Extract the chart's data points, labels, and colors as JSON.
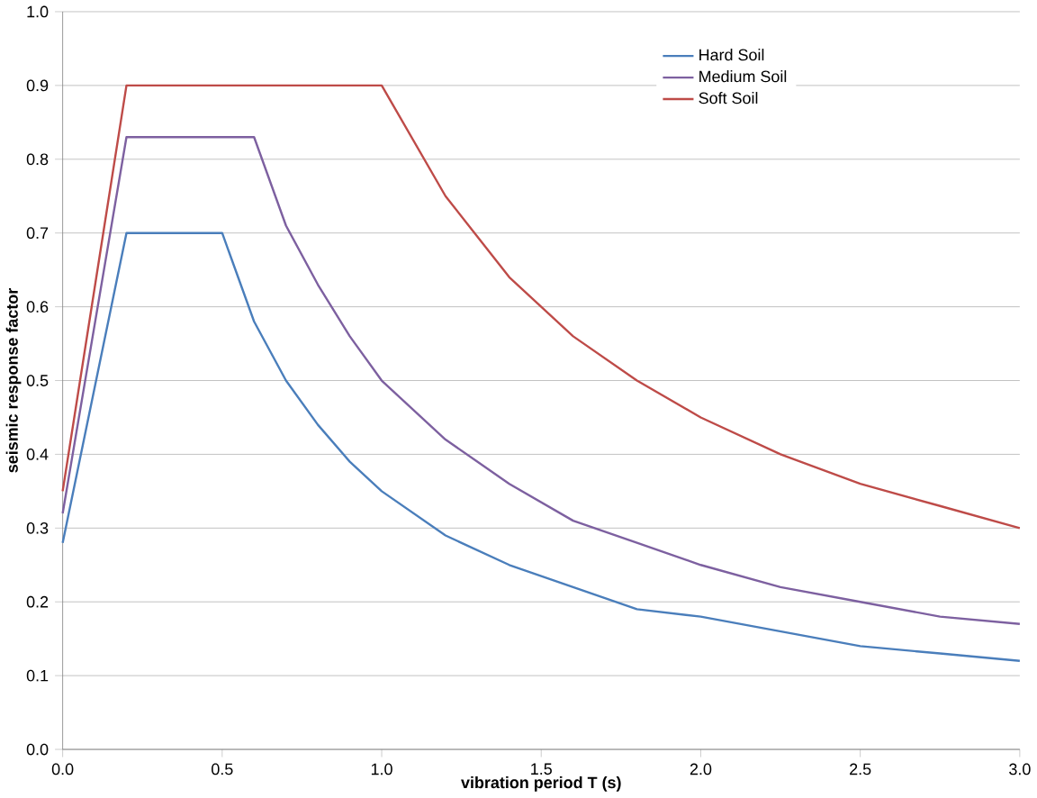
{
  "chart_data": {
    "type": "line",
    "xlabel": "vibration period T (s)",
    "ylabel": "seismic response factor",
    "xlim": [
      0,
      3
    ],
    "ylim": [
      0,
      1
    ],
    "xticks": [
      {
        "value": 0,
        "label": "0.0"
      },
      {
        "value": 0.5,
        "label": "0.5"
      },
      {
        "value": 1,
        "label": "1.0"
      },
      {
        "value": 1.5,
        "label": "1.5"
      },
      {
        "value": 2,
        "label": "2.0"
      },
      {
        "value": 2.5,
        "label": "2.5"
      },
      {
        "value": 3,
        "label": "3.0"
      }
    ],
    "yticks": [
      {
        "value": 0,
        "label": "0.0"
      },
      {
        "value": 0.1,
        "label": "0.1"
      },
      {
        "value": 0.2,
        "label": "0.2"
      },
      {
        "value": 0.3,
        "label": "0.3"
      },
      {
        "value": 0.4,
        "label": "0.4"
      },
      {
        "value": 0.5,
        "label": "0.5"
      },
      {
        "value": 0.6,
        "label": "0.6"
      },
      {
        "value": 0.7,
        "label": "0.7"
      },
      {
        "value": 0.8,
        "label": "0.8"
      },
      {
        "value": 0.9,
        "label": "0.9"
      },
      {
        "value": 1,
        "label": "1.0"
      }
    ],
    "grid": "y",
    "legend": "top right",
    "marker": "none",
    "line_style": "solid",
    "series": [
      {
        "name": "Hard Soil",
        "color": "#4a7ebb",
        "x": [
          0,
          0.2,
          0.5,
          0.6,
          0.7,
          0.8,
          0.9,
          1.0,
          1.2,
          1.4,
          1.6,
          1.8,
          2.0,
          2.25,
          2.5,
          2.75,
          3.0
        ],
        "values": [
          0.28,
          0.7,
          0.7,
          0.58,
          0.5,
          0.44,
          0.39,
          0.35,
          0.29,
          0.25,
          0.22,
          0.19,
          0.18,
          0.16,
          0.14,
          0.13,
          0.12
        ]
      },
      {
        "name": "Medium Soil",
        "color": "#7d60a0",
        "x": [
          0,
          0.2,
          0.6,
          0.7,
          0.8,
          0.9,
          1.0,
          1.2,
          1.4,
          1.6,
          1.8,
          2.0,
          2.25,
          2.5,
          2.75,
          3.0
        ],
        "values": [
          0.32,
          0.83,
          0.83,
          0.71,
          0.63,
          0.56,
          0.5,
          0.42,
          0.36,
          0.31,
          0.28,
          0.25,
          0.22,
          0.2,
          0.18,
          0.17
        ]
      },
      {
        "name": "Soft Soil",
        "color": "#be4b48",
        "x": [
          0,
          0.2,
          1.0,
          1.2,
          1.4,
          1.6,
          1.8,
          2.0,
          2.25,
          2.5,
          2.75,
          3.0
        ],
        "values": [
          0.35,
          0.9,
          0.9,
          0.75,
          0.64,
          0.56,
          0.5,
          0.45,
          0.4,
          0.36,
          0.33,
          0.3
        ]
      }
    ]
  }
}
